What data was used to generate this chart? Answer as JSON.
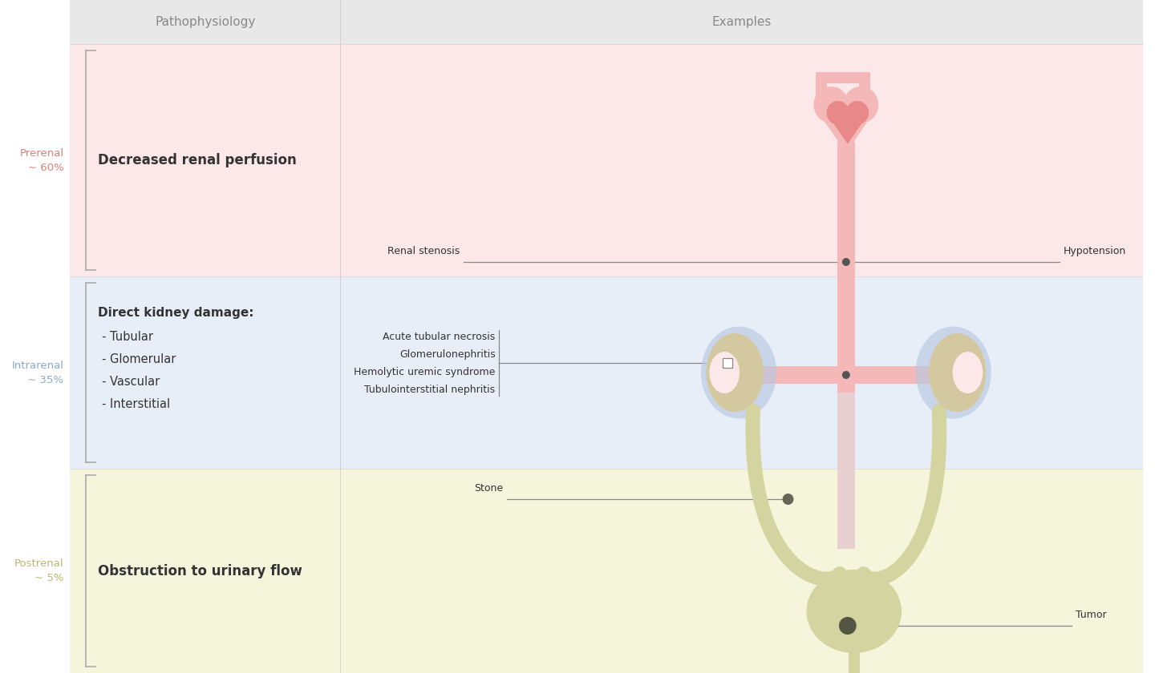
{
  "background_color": "#ffffff",
  "header_bg": "#e8e8e8",
  "prerenal_bg": "#fce8e8",
  "intrarenal_bg": "#e8eef8",
  "postrenal_bg": "#f5f5dc",
  "col1_header": "Pathophysiology",
  "col2_header": "Examples",
  "prerenal_color": "#d9807a",
  "intrarenal_color": "#8fa8c8",
  "postrenal_color": "#b8b870",
  "prerenal_text": "Decreased renal perfusion",
  "intrarenal_title": "Direct kidney damage:",
  "intrarenal_items": [
    "- Tubular",
    "- Glomerular",
    "- Vascular",
    "- Interstitial"
  ],
  "postrenal_text": "Obstruction to urinary flow",
  "examples_labels": [
    "Acute tubular necrosis",
    "Glomerulonephritis",
    "Hemolytic uremic syndrome",
    "Tubulointerstitial nephritis"
  ],
  "renal_stenosis_label": "Renal stenosis",
  "hypotension_label": "Hypotension",
  "stone_label": "Stone",
  "tumor_label": "Tumor",
  "heart_color": "#f4b8b8",
  "heart_dark": "#e88888",
  "vessel_color": "#f4b8b8",
  "kidney_color": "#d4c8a0",
  "kidney_shadow": "#b8c8e0",
  "ureter_color": "#d4d4a0",
  "bladder_color": "#d4d4a0",
  "text_dark": "#333333",
  "text_gray": "#888888"
}
